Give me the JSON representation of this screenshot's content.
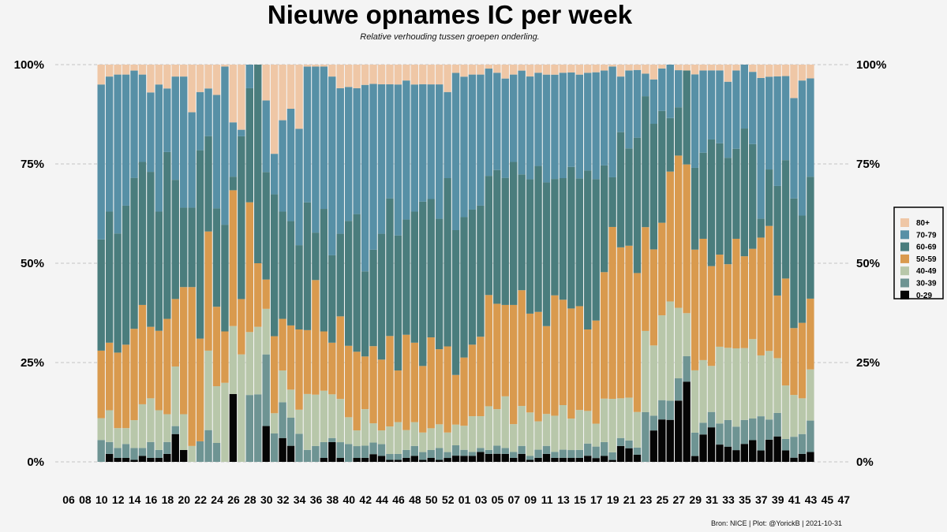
{
  "chart_data": {
    "type": "bar",
    "stacked": true,
    "normalized": true,
    "title": "Nieuwe opnames IC per week",
    "subtitle": "Relative verhouding tussen groepen onderling.",
    "caption": "Bron: NICE | Plot: @YorickB |  2021-10-31",
    "x_tick_labels": [
      "06",
      "08",
      "10",
      "12",
      "14",
      "16",
      "18",
      "20",
      "22",
      "24",
      "26",
      "28",
      "30",
      "32",
      "34",
      "36",
      "38",
      "40",
      "42",
      "44",
      "46",
      "48",
      "50",
      "52",
      "01",
      "03",
      "05",
      "07",
      "09",
      "11",
      "13",
      "15",
      "17",
      "19",
      "21",
      "23",
      "25",
      "27",
      "29",
      "31",
      "33",
      "35",
      "37",
      "39",
      "41",
      "43",
      "45",
      "47"
    ],
    "y_tick_labels": [
      "0%",
      "25%",
      "50%",
      "75%",
      "100%"
    ],
    "y_ticks": [
      0,
      0.25,
      0.5,
      0.75,
      1
    ],
    "ylim": [
      0,
      1
    ],
    "grid": "horizontal-dashed",
    "legend_position": "right",
    "colors": {
      "0-29": "#050505",
      "30-39": "#6e9493",
      "40-49": "#b8c7aa",
      "50-59": "#d99a4e",
      "60-69": "#4a7d7d",
      "70-79": "#5790a6",
      "80+": "#efc7a6"
    },
    "groups_legend_order": [
      "80+",
      "70-79",
      "60-69",
      "50-59",
      "40-49",
      "30-39",
      "0-29"
    ],
    "stack_order": [
      "0-29",
      "30-39",
      "40-49",
      "50-59",
      "60-69",
      "70-79",
      "80+"
    ],
    "weeks": [
      "2020-10",
      "2020-11",
      "2020-12",
      "2020-13",
      "2020-14",
      "2020-15",
      "2020-16",
      "2020-17",
      "2020-18",
      "2020-19",
      "2020-20",
      "2020-21",
      "2020-22",
      "2020-23",
      "2020-24",
      "2020-25",
      "2020-26",
      "2020-27",
      "2020-28",
      "2020-29",
      "2020-30",
      "2020-31",
      "2020-32",
      "2020-33",
      "2020-34",
      "2020-35",
      "2020-36",
      "2020-37",
      "2020-38",
      "2020-39",
      "2020-40",
      "2020-41",
      "2020-42",
      "2020-43",
      "2020-44",
      "2020-45",
      "2020-46",
      "2020-47",
      "2020-48",
      "2020-49",
      "2020-50",
      "2020-51",
      "2020-52",
      "2020-53",
      "2021-01",
      "2021-02",
      "2021-03",
      "2021-04",
      "2021-05",
      "2021-06",
      "2021-07",
      "2021-08",
      "2021-09",
      "2021-10",
      "2021-11",
      "2021-12",
      "2021-13",
      "2021-14",
      "2021-15",
      "2021-16",
      "2021-17",
      "2021-18",
      "2021-19",
      "2021-20",
      "2021-21",
      "2021-22",
      "2021-23",
      "2021-24",
      "2021-25",
      "2021-26",
      "2021-27",
      "2021-28",
      "2021-29",
      "2021-30",
      "2021-31",
      "2021-32",
      "2021-33",
      "2021-34",
      "2021-35",
      "2021-36",
      "2021-37",
      "2021-38",
      "2021-39",
      "2021-40",
      "2021-41",
      "2021-42",
      "2021-43"
    ],
    "series": [
      {
        "name": "0-29",
        "values": [
          0,
          0.02,
          0.01,
          0.01,
          0.005,
          0.015,
          0.01,
          0.01,
          0.02,
          0.07,
          0.03,
          0,
          0,
          0,
          0,
          0,
          0.2,
          0,
          0,
          0,
          0.11,
          0,
          0.06,
          0.04,
          0,
          0,
          0,
          0.01,
          0.05,
          0.01,
          0,
          0.01,
          0.01,
          0.02,
          0.015,
          0.005,
          0.005,
          0.01,
          0.015,
          0.005,
          0.01,
          0.005,
          0.01,
          0.015,
          0.015,
          0.015,
          0.025,
          0.02,
          0.02,
          0.02,
          0.01,
          0.02,
          0.005,
          0.01,
          0.02,
          0.01,
          0.01,
          0.01,
          0.01,
          0.015,
          0.01,
          0.015,
          0.005,
          0.04,
          0.035,
          0.02,
          0,
          0.085,
          0.11,
          0.11,
          0.165,
          0.205,
          0.015,
          0.07,
          0.09,
          0.045,
          0.04,
          0.03,
          0.045,
          0.06,
          0.03,
          0.055,
          0.065,
          0.03,
          0.01,
          0.02,
          0.025
        ]
      },
      {
        "name": "30-39",
        "values": [
          0.055,
          0.03,
          0.025,
          0.035,
          0.03,
          0.02,
          0.04,
          0.02,
          0.03,
          0.02,
          0,
          0,
          0.06,
          0.08,
          0.05,
          0,
          0,
          0,
          0.17,
          0.17,
          0.22,
          0.07,
          0.09,
          0.07,
          0.07,
          0.03,
          0.04,
          0.04,
          0.01,
          0.04,
          0.04,
          0.03,
          0.03,
          0.03,
          0.03,
          0.015,
          0.015,
          0.02,
          0.025,
          0.02,
          0.02,
          0.03,
          0.015,
          0.025,
          0.015,
          0.01,
          0.01,
          0.01,
          0.02,
          0.015,
          0.015,
          0.02,
          0.01,
          0.02,
          0.02,
          0.015,
          0.02,
          0.02,
          0.02,
          0.03,
          0.03,
          0.035,
          0.02,
          0.02,
          0.02,
          0.02,
          0.11,
          0.04,
          0.05,
          0.05,
          0.06,
          0.065,
          0.06,
          0.03,
          0.04,
          0.055,
          0.07,
          0.06,
          0.06,
          0.06,
          0.09,
          0.05,
          0.06,
          0.03,
          0.05,
          0.05,
          0.08
        ]
      },
      {
        "name": "40-49",
        "values": [
          0.055,
          0.08,
          0.05,
          0.04,
          0.07,
          0.11,
          0.11,
          0.1,
          0.07,
          0.15,
          0.09,
          0.04,
          0,
          0.2,
          0.15,
          0.2,
          0.2,
          0.33,
          0.16,
          0.17,
          0.14,
          0.05,
          0.08,
          0.07,
          0.06,
          0.14,
          0.13,
          0.13,
          0.11,
          0.11,
          0.06,
          0.04,
          0.09,
          0.05,
          0.035,
          0.07,
          0.08,
          0.05,
          0.06,
          0.05,
          0.055,
          0.06,
          0.05,
          0.05,
          0.06,
          0.09,
          0.08,
          0.11,
          0.09,
          0.13,
          0.07,
          0.1,
          0.11,
          0.07,
          0.08,
          0.09,
          0.11,
          0.08,
          0.1,
          0.08,
          0.06,
          0.11,
          0.14,
          0.1,
          0.11,
          0.1,
          0.18,
          0.19,
          0.22,
          0.26,
          0.19,
          0.11,
          0.16,
          0.16,
          0.12,
          0.2,
          0.19,
          0.2,
          0.18,
          0.22,
          0.16,
          0.17,
          0.14,
          0.14,
          0.1,
          0.09,
          0.13
        ]
      },
      {
        "name": "50-59",
        "values": [
          0.17,
          0.17,
          0.19,
          0.21,
          0.23,
          0.25,
          0.18,
          0.2,
          0.24,
          0.17,
          0.32,
          0.4,
          0.3,
          0.3,
          0.21,
          0.13,
          0.4,
          0.17,
          0.33,
          0.16,
          0.09,
          0.19,
          0.13,
          0.16,
          0.2,
          0.16,
          0.29,
          0.15,
          0.13,
          0.21,
          0.16,
          0.2,
          0.13,
          0.2,
          0.18,
          0.23,
          0.13,
          0.24,
          0.2,
          0.17,
          0.23,
          0.19,
          0.22,
          0.12,
          0.17,
          0.18,
          0.2,
          0.28,
          0.26,
          0.23,
          0.3,
          0.29,
          0.25,
          0.27,
          0.22,
          0.3,
          0.26,
          0.28,
          0.26,
          0.2,
          0.27,
          0.32,
          0.45,
          0.38,
          0.39,
          0.39,
          0.23,
          0.26,
          0.24,
          0.34,
          0.41,
          0.38,
          0.31,
          0.31,
          0.26,
          0.24,
          0.22,
          0.28,
          0.23,
          0.25,
          0.31,
          0.31,
          0.16,
          0.28,
          0.16,
          0.19,
          0.18
        ]
      },
      {
        "name": "60-69",
        "values": [
          0.28,
          0.33,
          0.3,
          0.35,
          0.38,
          0.36,
          0.39,
          0.3,
          0.42,
          0.3,
          0.2,
          0.2,
          0.55,
          0.24,
          0.26,
          0.27,
          0.04,
          0.5,
          0.29,
          0.5,
          0.33,
          0.35,
          0.27,
          0.26,
          0.21,
          0.32,
          0.12,
          0.31,
          0.22,
          0.21,
          0.28,
          0.35,
          0.21,
          0.25,
          0.32,
          0.35,
          0.34,
          0.29,
          0.33,
          0.42,
          0.35,
          0.33,
          0.43,
          0.35,
          0.35,
          0.34,
          0.33,
          0.3,
          0.33,
          0.32,
          0.36,
          0.29,
          0.34,
          0.36,
          0.36,
          0.29,
          0.3,
          0.36,
          0.32,
          0.39,
          0.37,
          0.27,
          0.13,
          0.29,
          0.25,
          0.38,
          0.29,
          0.34,
          0.29,
          0.14,
          0.13,
          0.24,
          0.21,
          0.22,
          0.33,
          0.29,
          0.28,
          0.23,
          0.32,
          0.29,
          0.05,
          0.14,
          0.28,
          0.31,
          0.31,
          0.27,
          0.31
        ]
      },
      {
        "name": "70-79",
        "values": [
          0.39,
          0.34,
          0.4,
          0.33,
          0.27,
          0.22,
          0.2,
          0.32,
          0.16,
          0.26,
          0.33,
          0.24,
          0.17,
          0.12,
          0.3,
          0.4,
          0.16,
          0.02,
          0.06,
          0,
          0.22,
          0.1,
          0.23,
          0.28,
          0.29,
          0.34,
          0.42,
          0.36,
          0.45,
          0.37,
          0.3,
          0.32,
          0.46,
          0.43,
          0.38,
          0.29,
          0.38,
          0.35,
          0.32,
          0.3,
          0.29,
          0.34,
          0.22,
          0.38,
          0.35,
          0.34,
          0.33,
          0.27,
          0.24,
          0.25,
          0.22,
          0.26,
          0.26,
          0.23,
          0.27,
          0.26,
          0.26,
          0.24,
          0.26,
          0.24,
          0.28,
          0.24,
          0.29,
          0.14,
          0.2,
          0.19,
          0.05,
          0.12,
          0.11,
          0.14,
          0.1,
          0,
          0.24,
          0.21,
          0.18,
          0.19,
          0.2,
          0.2,
          0.16,
          0.2,
          0.37,
          0.23,
          0.28,
          0.22,
          0.24,
          0.34,
          0.25
        ]
      },
      {
        "name": "80+",
        "values": [
          0.05,
          0.03,
          0.025,
          0.025,
          0.015,
          0.025,
          0.07,
          0.05,
          0.06,
          0.03,
          0.03,
          0.12,
          0.08,
          0.06,
          0.08,
          0.005,
          0.17,
          0.2,
          0,
          0,
          0.11,
          0.22,
          0.14,
          0.11,
          0.16,
          0.005,
          0.005,
          0.005,
          0.03,
          0.06,
          0.05,
          0.06,
          0.05,
          0.05,
          0.05,
          0.05,
          0.05,
          0.04,
          0.05,
          0.05,
          0.05,
          0.05,
          0.07,
          0.02,
          0.03,
          0.025,
          0.025,
          0.01,
          0.02,
          0.035,
          0.025,
          0.015,
          0.03,
          0.02,
          0.025,
          0.025,
          0.02,
          0.02,
          0.025,
          0.02,
          0.02,
          0.015,
          0.005,
          0.03,
          0.015,
          0.015,
          0.02,
          0.04,
          0.01,
          0,
          0.015,
          0.015,
          0.025,
          0.015,
          0.015,
          0.015,
          0.045,
          0.015,
          0,
          0.02,
          0.035,
          0.03,
          0.03,
          0.03,
          0.08,
          0.04,
          0.035
        ]
      }
    ]
  }
}
